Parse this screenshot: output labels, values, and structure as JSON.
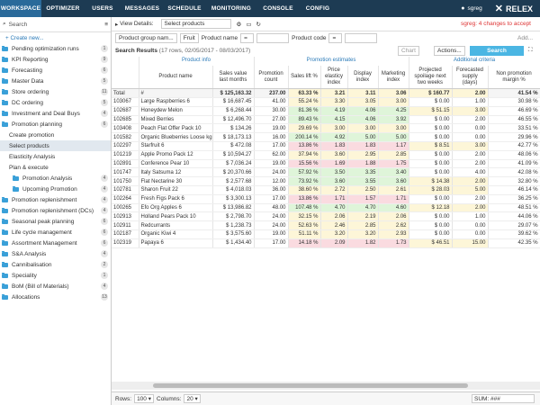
{
  "nav": {
    "tabs": [
      "WORKSPACE",
      "OPTIMIZER",
      "USERS",
      "MESSAGES",
      "SCHEDULE",
      "MONITORING",
      "CONSOLE",
      "CONFIG"
    ],
    "user": "sgreg",
    "logo": "RELEX"
  },
  "sidebar": {
    "search": "Search",
    "create": "Create new...",
    "items": [
      {
        "label": "Pending optimization runs",
        "count": "1",
        "level": 0,
        "type": "folder"
      },
      {
        "label": "KPI Reporting",
        "count": "9",
        "level": 0,
        "type": "folder"
      },
      {
        "label": "Forecasting",
        "count": "6",
        "level": 0,
        "type": "folder"
      },
      {
        "label": "Master Data",
        "count": "5",
        "level": 0,
        "type": "folder"
      },
      {
        "label": "Store ordering",
        "count": "11",
        "level": 0,
        "type": "folder"
      },
      {
        "label": "DC ordering",
        "count": "5",
        "level": 0,
        "type": "folder"
      },
      {
        "label": "Investment and Deal Buys",
        "count": "4",
        "level": 0,
        "type": "folder"
      },
      {
        "label": "Promotion planning",
        "count": "6",
        "level": 0,
        "type": "folder"
      },
      {
        "label": "Create promotion",
        "count": "",
        "level": 1,
        "type": "item"
      },
      {
        "label": "Select products",
        "count": "",
        "level": 1,
        "type": "item",
        "selected": true
      },
      {
        "label": "Elasticity Analysis",
        "count": "",
        "level": 1,
        "type": "item"
      },
      {
        "label": "Plan & execute",
        "count": "",
        "level": 1,
        "type": "item"
      },
      {
        "label": "Promotion Analysis",
        "count": "4",
        "level": 2,
        "type": "folder"
      },
      {
        "label": "Upcoming Promotion",
        "count": "4",
        "level": 2,
        "type": "folder"
      },
      {
        "label": "Promotion replenishment",
        "count": "4",
        "level": 0,
        "type": "folder"
      },
      {
        "label": "Promotion replenishment (DCs)",
        "count": "4",
        "level": 0,
        "type": "folder"
      },
      {
        "label": "Seasonal peak planning",
        "count": "6",
        "level": 0,
        "type": "folder"
      },
      {
        "label": "Life cycle management",
        "count": "6",
        "level": 0,
        "type": "folder"
      },
      {
        "label": "Assortment Management",
        "count": "6",
        "level": 0,
        "type": "folder"
      },
      {
        "label": "S&A Analysis",
        "count": "4",
        "level": 0,
        "type": "folder"
      },
      {
        "label": "Cannibalisation",
        "count": "2",
        "level": 0,
        "type": "folder"
      },
      {
        "label": "Speciality",
        "count": "1",
        "level": 0,
        "type": "folder"
      },
      {
        "label": "BoM (Bill of Materials)",
        "count": "4",
        "level": 0,
        "type": "folder"
      },
      {
        "label": "Allocations",
        "count": "13",
        "level": 0,
        "type": "folder"
      }
    ]
  },
  "toolbar": {
    "view_details": "View Details:",
    "view_value": "Select products",
    "changes": "sgreg: 4 changes to accept",
    "filter1": "Product group nam...",
    "filter1_value": "Fruit",
    "filter2": "Product name",
    "filter3": "Product code",
    "add": "Add...",
    "results": "Search Results",
    "results_info": "(17 rows, 02/05/2017 - 08/03/2017)",
    "chart": "Chart",
    "actions": "Actions...",
    "search_btn": "Search"
  },
  "groups": {
    "info": "Product info",
    "est": "Promotion estimates",
    "add": "Additional criteria"
  },
  "columns": [
    "Product name",
    "Sales value last months",
    "Promotion count",
    "Sales lift %",
    "Price elasticy index",
    "Display index",
    "Marketing index",
    "Projected spoilage next two weeks",
    "Forecasted supply (days)",
    "Non promotion margin %"
  ],
  "total": {
    "code": "Total",
    "name": "#",
    "vals": [
      "$ 125,163.32",
      "237.00",
      "63.33 %",
      "3.21",
      "3.11",
      "3.06",
      "$ 160.77",
      "2.00",
      "41.54 %"
    ]
  },
  "rows": [
    [
      "103067",
      "Large Raspberries 6",
      "$ 16,687.45",
      "41.00",
      "55.24 %",
      "3.30",
      "3.05",
      "3.00",
      "$ 0.00",
      "1.00",
      "30.98 %"
    ],
    [
      "102687",
      "Honeydew Melon",
      "$ 6,268.44",
      "30.00",
      "81.36 %",
      "4.19",
      "4.06",
      "4.25",
      "$ 51.15",
      "3.00",
      "46.69 %"
    ],
    [
      "102685",
      "Mixed Berries",
      "$ 12,496.70",
      "27.00",
      "89.43 %",
      "4.15",
      "4.06",
      "3.92",
      "$ 0.00",
      "2.00",
      "46.55 %"
    ],
    [
      "103408",
      "Peach Flat Offer Pack 10",
      "$ 134.26",
      "19.00",
      "29.69 %",
      "3.00",
      "3.00",
      "3.00",
      "$ 0.00",
      "0.00",
      "33.51 %"
    ],
    [
      "101582",
      "Organic Blueberries Loose kg",
      "$ 18,173.13",
      "16.00",
      "200.14 %",
      "4.92",
      "5.00",
      "5.00",
      "$ 0.00",
      "0.00",
      "29.96 %"
    ],
    [
      "102297",
      "Starfruit 6",
      "$ 472.08",
      "17.00",
      "13.86 %",
      "1.83",
      "1.83",
      "1.17",
      "$ 8.51",
      "3.00",
      "42.77 %"
    ],
    [
      "101219",
      "Apple Promo Pack 12",
      "$ 10,594.27",
      "62.00",
      "37.94 %",
      "3.60",
      "2.95",
      "2.85",
      "$ 0.00",
      "2.00",
      "48.06 %"
    ],
    [
      "102891",
      "Conference Pear 10",
      "$ 7,036.24",
      "19.00",
      "15.56 %",
      "1.69",
      "1.88",
      "1.75",
      "$ 0.00",
      "2.00",
      "41.09 %"
    ],
    [
      "101747",
      "Italy Satsuma 12",
      "$ 20,370.66",
      "24.00",
      "57.92 %",
      "3.50",
      "3.35",
      "3.40",
      "$ 0.00",
      "4.00",
      "42.08 %"
    ],
    [
      "101750",
      "Flat Nectarine 30",
      "$ 2,577.68",
      "12.00",
      "73.92 %",
      "3.60",
      "3.55",
      "3.60",
      "$ 14.38",
      "2.00",
      "32.80 %"
    ],
    [
      "102781",
      "Sharon Fruit 22",
      "$ 4,018.03",
      "36.00",
      "38.60 %",
      "2.72",
      "2.50",
      "2.61",
      "$ 28.03",
      "5.00",
      "46.14 %"
    ],
    [
      "102264",
      "Fresh Figs Pack 6",
      "$ 3,300.13",
      "17.00",
      "13.86 %",
      "1.71",
      "1.57",
      "1.71",
      "$ 0.00",
      "2.00",
      "36.25 %"
    ],
    [
      "100265",
      "Efo Org Apples 6",
      "$ 13,986.82",
      "48.00",
      "107.48 %",
      "4.70",
      "4.70",
      "4.60",
      "$ 12.18",
      "2.00",
      "48.51 %"
    ],
    [
      "102913",
      "Holland Pears Pack 10",
      "$ 2,798.70",
      "24.00",
      "32.15 %",
      "2.06",
      "2.19",
      "2.06",
      "$ 0.00",
      "1.00",
      "44.06 %"
    ],
    [
      "102911",
      "Redcurrants",
      "$ 1,238.73",
      "24.00",
      "52.63 %",
      "2.46",
      "2.85",
      "2.62",
      "$ 0.00",
      "0.00",
      "29.07 %"
    ],
    [
      "102187",
      "Organic Kiwi 4",
      "$ 3,575.60",
      "19.00",
      "51.11 %",
      "3.20",
      "3.20",
      "2.93",
      "$ 0.00",
      "0.00",
      "39.62 %"
    ],
    [
      "102319",
      "Papaya 6",
      "$ 1,434.40",
      "17.00",
      "14.18 %",
      "2.09",
      "1.82",
      "1.73",
      "$ 46.51",
      "15.00",
      "42.35 %"
    ]
  ],
  "colors": {
    "lift": [
      "yellow",
      "green",
      "green",
      "yellow",
      "green",
      "red",
      "yellow",
      "red",
      "green",
      "green",
      "yellow",
      "red",
      "green",
      "yellow",
      "yellow",
      "yellow",
      "red"
    ]
  },
  "bottom": {
    "rows_label": "Rows:",
    "rows_val": "100",
    "cols_label": "Columns:",
    "cols_val": "20",
    "sum": "SUM: ###"
  }
}
